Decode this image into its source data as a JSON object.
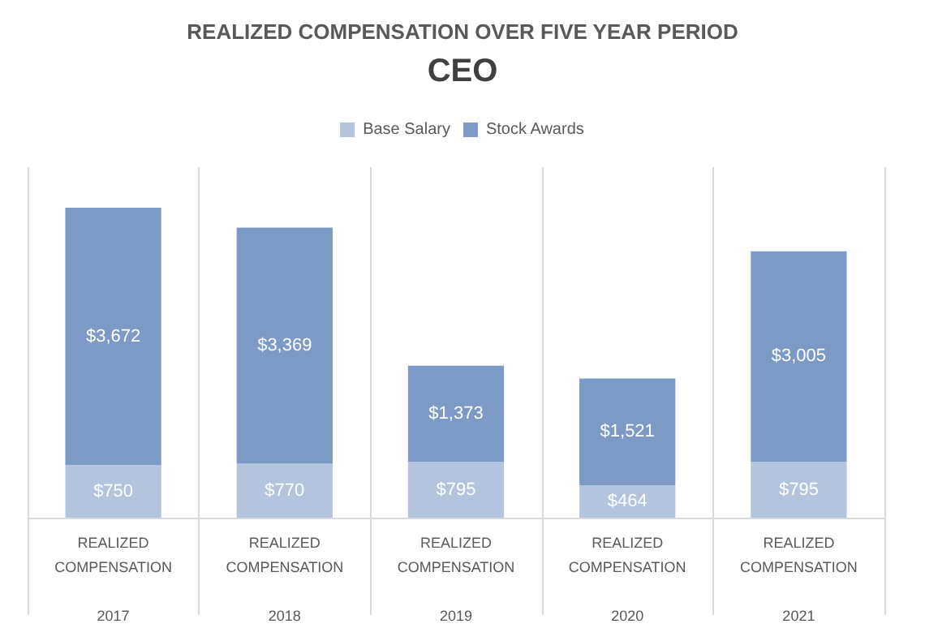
{
  "chart_data": {
    "type": "bar",
    "title": "REALIZED COMPENSATION OVER FIVE YEAR PERIOD",
    "subtitle": "CEO",
    "stacked": true,
    "legend": "top",
    "grid": "x",
    "tick_labels": "x",
    "categories": [
      "REALIZED COMPENSATION 2017",
      "REALIZED COMPENSATION 2018",
      "REALIZED COMPENSATION 2019",
      "REALIZED COMPENSATION 2020",
      "REALIZED COMPENSATION 2021"
    ],
    "series": [
      {
        "name": "Base Salary",
        "color": "#b4c3de",
        "values": [
          750,
          770,
          795,
          464,
          795
        ],
        "value_labels": [
          "$750",
          "$770",
          "$795",
          "$464",
          "$795"
        ]
      },
      {
        "name": "Stock Awards",
        "color": "#7b9ac6",
        "values": [
          3672,
          3369,
          1373,
          1521,
          3005
        ],
        "value_labels": [
          "$3,672",
          "$3,369",
          "$1,373",
          "$1,521",
          "$3,005"
        ]
      }
    ]
  }
}
